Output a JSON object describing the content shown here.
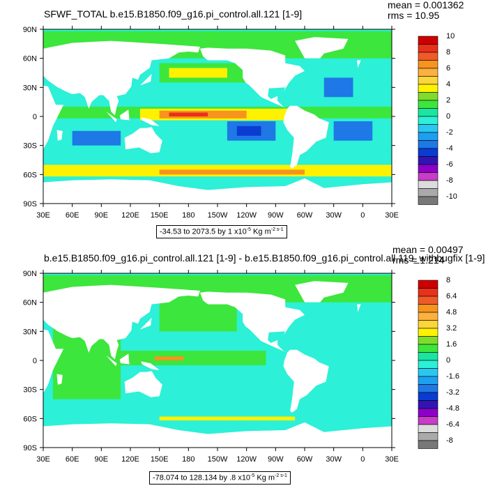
{
  "chart_data": [
    {
      "type": "heatmap",
      "title": "SFWF_TOTAL b.e15.B1850.f09_g16.pi_control.all.121 [1-9]",
      "stats": {
        "mean": "mean = 0.001362",
        "rms": "rms = 10.95"
      },
      "range_text": "-34.53 to 2073.5 by 1 x10",
      "range_exp": "-5",
      "range_unit": " Kg m",
      "range_unit_exp": "-2 s-1",
      "x_ticks": [
        "30E",
        "60E",
        "90E",
        "120E",
        "150E",
        "180",
        "150W",
        "120W",
        "90W",
        "60W",
        "30W",
        "0",
        "30E"
      ],
      "y_ticks": [
        "90N",
        "60N",
        "30N",
        "0",
        "30S",
        "60S",
        "90S"
      ],
      "colorbar": {
        "labels": [
          "10",
          "8",
          "6",
          "4",
          "2",
          "0",
          "-2",
          "-4",
          "-6",
          "-8",
          "-10"
        ],
        "colors": [
          "#cc0000",
          "#e8301a",
          "#f05a28",
          "#f7941d",
          "#fbb040",
          "#fcd53a",
          "#fff200",
          "#7fdc2a",
          "#3ce63c",
          "#19e6a0",
          "#2cf0d7",
          "#29c8f0",
          "#1ea0f0",
          "#1e78e6",
          "#0a3cd2",
          "#3214b4",
          "#8c00c8",
          "#c83cc8",
          "#dcdcdc",
          "#aaaaaa",
          "#787878"
        ]
      }
    },
    {
      "type": "heatmap",
      "title": "b.e15.B1850.f09_g16.pi_control.all.121 [1-9] - b.e15.B1850.f09_g16.pi_control.all.119_withbugfix [1-9]",
      "stats": {
        "mean": "mean = 0.00497",
        "rms": "rms = 1.214"
      },
      "range_text": "-78.074 to 128.134 by .8 x10",
      "range_exp": "-5",
      "range_unit": " Kg m",
      "range_unit_exp": "-2 s-1",
      "x_ticks": [
        "30E",
        "60E",
        "90E",
        "120E",
        "150E",
        "180",
        "150W",
        "120W",
        "90W",
        "60W",
        "30W",
        "0",
        "30E"
      ],
      "y_ticks": [
        "90N",
        "60N",
        "30N",
        "0",
        "30S",
        "60S",
        "90S"
      ],
      "colorbar": {
        "labels": [
          "8",
          "6.4",
          "4.8",
          "3.2",
          "1.6",
          "0",
          "-1.6",
          "-3.2",
          "-4.8",
          "-6.4",
          "-8"
        ],
        "colors": [
          "#cc0000",
          "#e8301a",
          "#f05a28",
          "#f7941d",
          "#fbb040",
          "#fcd53a",
          "#fff200",
          "#7fdc2a",
          "#3ce63c",
          "#19e6a0",
          "#2cf0d7",
          "#29c8f0",
          "#1ea0f0",
          "#1e78e6",
          "#0a3cd2",
          "#3214b4",
          "#8c00c8",
          "#c83cc8",
          "#dcdcdc",
          "#aaaaaa",
          "#787878"
        ]
      }
    }
  ]
}
